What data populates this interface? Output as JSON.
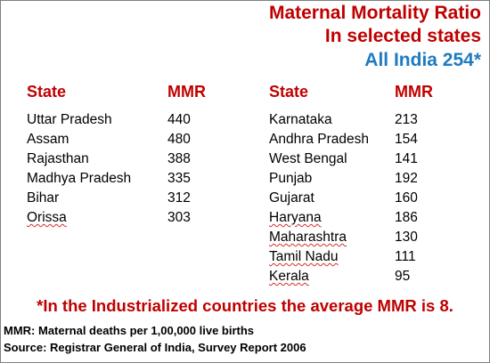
{
  "title": {
    "line1": "Maternal Mortality Ratio",
    "line2": "In selected states",
    "line3": "All India 254*"
  },
  "chart_data": {
    "type": "table",
    "headers": [
      "State",
      "MMR"
    ],
    "left": {
      "states": [
        "Uttar Pradesh",
        "Assam",
        "Rajasthan",
        "Madhya Pradesh",
        "Bihar",
        "Orissa"
      ],
      "mmr": [
        "440",
        "480",
        "388",
        "335",
        "312",
        "303"
      ]
    },
    "right": {
      "states": [
        "Karnataka",
        "Andhra Pradesh",
        "West Bengal",
        "Punjab",
        "Gujarat",
        "Haryana",
        "Maharashtra",
        "Tamil Nadu",
        "Kerala"
      ],
      "mmr": [
        "213",
        "154",
        "141",
        "192",
        "160",
        "186",
        "130",
        "111",
        "95"
      ]
    }
  },
  "footnote": "*In the Industrialized countries the average MMR is 8.",
  "definition": "MMR: Maternal deaths per 1,00,000 live births",
  "source": "Source: Registrar General of India, Survey Report 2006",
  "colors": {
    "red": "#c00000",
    "blue": "#1f7bc0"
  }
}
